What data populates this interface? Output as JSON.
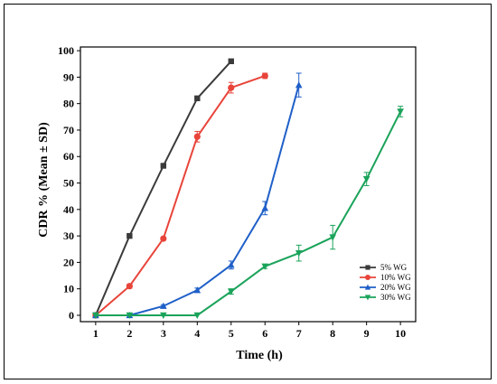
{
  "chart_data": {
    "type": "line",
    "title": "",
    "xlabel": "Time (h)",
    "ylabel": "CDR % (Mean ± SD)",
    "xlim": [
      1,
      10
    ],
    "ylim": [
      0,
      100
    ],
    "xticks": [
      "1",
      "2",
      "3",
      "4",
      "5",
      "6",
      "7",
      "8",
      "9",
      "10"
    ],
    "yticks": [
      "0",
      "10",
      "20",
      "30",
      "40",
      "50",
      "60",
      "70",
      "80",
      "90",
      "100"
    ],
    "grid": false,
    "legend_position": "bottom-right",
    "series": [
      {
        "name": "5% WG",
        "color": "#3a3a3a",
        "marker": "square",
        "x": [
          1,
          2,
          3,
          4,
          5
        ],
        "y": [
          0,
          30,
          56.5,
          82,
          96
        ],
        "err": [
          0,
          0.4,
          0.5,
          0.5,
          0.4
        ]
      },
      {
        "name": "10% WG",
        "color": "#e8443a",
        "marker": "circle",
        "x": [
          1,
          2,
          3,
          4,
          5,
          6
        ],
        "y": [
          0,
          11,
          29,
          67.5,
          86,
          90.5
        ],
        "err": [
          0,
          0.8,
          0.5,
          2,
          2,
          1
        ]
      },
      {
        "name": "20% WG",
        "color": "#1f5fc8",
        "marker": "triangle-up",
        "x": [
          1,
          2,
          3,
          4,
          5,
          6,
          7
        ],
        "y": [
          0,
          0,
          3.5,
          9.5,
          19,
          40.5,
          87
        ],
        "err": [
          0,
          0,
          0.5,
          0.8,
          1.5,
          2.5,
          4.5
        ]
      },
      {
        "name": "30% WG",
        "color": "#1aa35a",
        "marker": "triangle-down",
        "x": [
          1,
          2,
          3,
          4,
          5,
          6,
          7,
          8,
          9,
          10
        ],
        "y": [
          0,
          0,
          0,
          0,
          9,
          18.5,
          23.5,
          29.5,
          51.5,
          77
        ],
        "err": [
          0,
          0,
          0,
          0,
          1,
          0.8,
          3,
          4.5,
          2.5,
          2
        ]
      }
    ]
  }
}
